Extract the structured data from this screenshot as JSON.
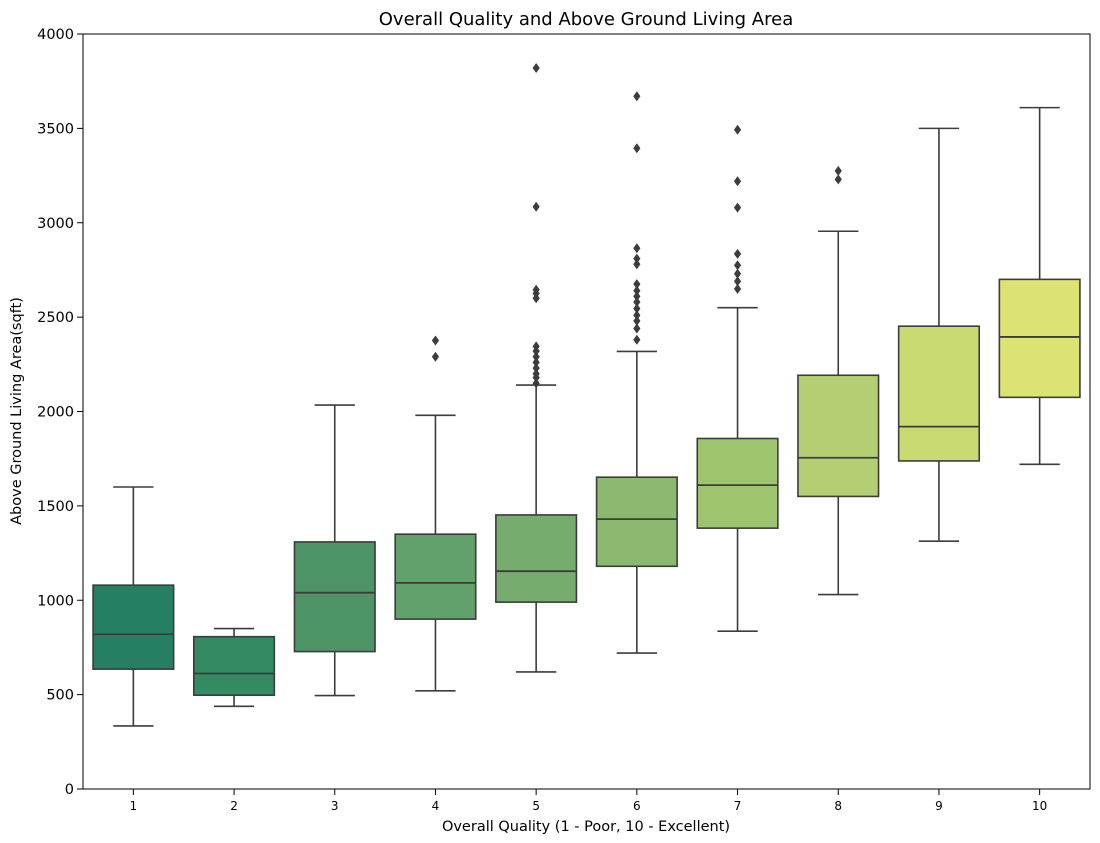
{
  "chart_data": {
    "type": "box",
    "title": "Overall Quality and Above Ground Living Area",
    "xlabel": "Overall Quality  (1 - Poor, 10 - Excellent)",
    "ylabel": "Above Ground Living Area(sqft)",
    "ylim": [
      0,
      4000
    ],
    "yticks": [
      "0",
      "500",
      "1000",
      "1500",
      "2000",
      "2500",
      "3000",
      "3500",
      "4000"
    ],
    "categories": [
      "1",
      "2",
      "3",
      "4",
      "5",
      "6",
      "7",
      "8",
      "9",
      "10"
    ],
    "grid": false,
    "legend": "none",
    "palette": "summer",
    "boxes": [
      {
        "category": "1",
        "color": "#277f63",
        "whisker_low": 334,
        "q1": 635,
        "median": 820,
        "q3": 1080,
        "whisker_high": 1600,
        "outliers": []
      },
      {
        "category": "2",
        "color": "#338a63",
        "whisker_low": 438,
        "q1": 497,
        "median": 612,
        "q3": 807,
        "whisker_high": 850,
        "outliers": []
      },
      {
        "category": "3",
        "color": "#4e9467",
        "whisker_low": 495,
        "q1": 728,
        "median": 1040,
        "q3": 1309,
        "whisker_high": 2034,
        "outliers": []
      },
      {
        "category": "4",
        "color": "#62a16b",
        "whisker_low": 520,
        "q1": 900,
        "median": 1092,
        "q3": 1350,
        "whisker_high": 1980,
        "outliers": [
          2290,
          2376
        ]
      },
      {
        "category": "5",
        "color": "#76ac6d",
        "whisker_low": 620,
        "q1": 990,
        "median": 1154,
        "q3": 1452,
        "whisker_high": 2140,
        "outliers": [
          2150,
          2180,
          2200,
          2230,
          2260,
          2290,
          2320,
          2345,
          2600,
          2625,
          2645,
          3085,
          3820
        ]
      },
      {
        "category": "6",
        "color": "#8bb96f",
        "whisker_low": 720,
        "q1": 1180,
        "median": 1430,
        "q3": 1652,
        "whisker_high": 2318,
        "outliers": [
          2380,
          2440,
          2480,
          2510,
          2545,
          2580,
          2610,
          2640,
          2675,
          2780,
          2810,
          2865,
          3395,
          3670
        ]
      },
      {
        "category": "7",
        "color": "#9ec56e",
        "whisker_low": 836,
        "q1": 1382,
        "median": 1610,
        "q3": 1857,
        "whisker_high": 2550,
        "outliers": [
          2650,
          2690,
          2730,
          2775,
          2835,
          3080,
          3220,
          3493
        ]
      },
      {
        "category": "8",
        "color": "#b4cf73",
        "whisker_low": 1030,
        "q1": 1550,
        "median": 1755,
        "q3": 2192,
        "whisker_high": 2955,
        "outliers": [
          3230,
          3275
        ]
      },
      {
        "category": "9",
        "color": "#c9da73",
        "whisker_low": 1313,
        "q1": 1738,
        "median": 1920,
        "q3": 2452,
        "whisker_high": 3500,
        "outliers": []
      },
      {
        "category": "10",
        "color": "#dce375",
        "whisker_low": 1720,
        "q1": 2075,
        "median": 2395,
        "q3": 2700,
        "whisker_high": 3610,
        "outliers": []
      }
    ]
  }
}
